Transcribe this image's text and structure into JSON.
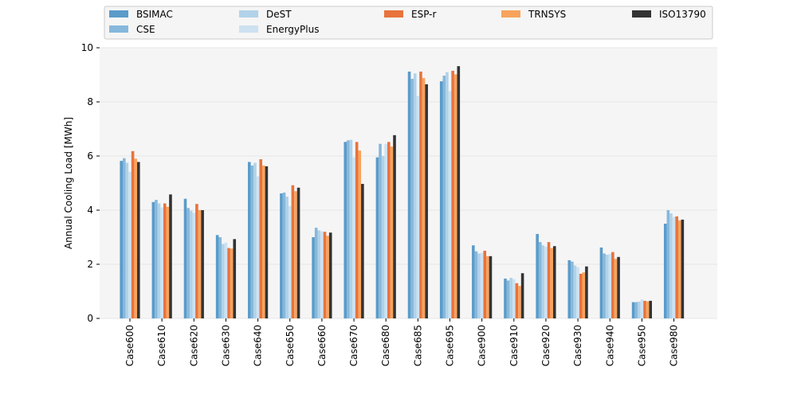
{
  "colors": {
    "BSIMAC": "#5b9bc9",
    "CSE": "#86b8dc",
    "DeST": "#b1d2e8",
    "EnergyPlus": "#cde1f1",
    "ESP-r": "#e8733d",
    "TRNSYS": "#f7a35c",
    "ISO13790": "#333333",
    "plot_bg": "#f5f5f5",
    "grid": "#e6e6e6"
  },
  "chart_data": {
    "type": "bar",
    "title": "",
    "xlabel": "",
    "ylabel": "Annual Cooling Load [MWh]",
    "ylim": [
      0,
      10
    ],
    "yticks": [
      0,
      2,
      4,
      6,
      8,
      10
    ],
    "grid": "horizontal",
    "legend_position": "top",
    "categories": [
      "Case600",
      "Case610",
      "Case620",
      "Case630",
      "Case640",
      "Case650",
      "Case660",
      "Case670",
      "Case680",
      "Case685",
      "Case695",
      "Case900",
      "Case910",
      "Case920",
      "Case930",
      "Case940",
      "Case950",
      "Case980"
    ],
    "series": [
      {
        "name": "BSIMAC",
        "values": [
          5.82,
          4.3,
          4.42,
          3.08,
          5.78,
          4.62,
          3.0,
          6.52,
          5.95,
          9.12,
          8.76,
          2.7,
          1.47,
          3.12,
          2.15,
          2.62,
          0.6,
          3.5
        ]
      },
      {
        "name": "CSE",
        "values": [
          5.92,
          4.38,
          4.08,
          3.0,
          5.65,
          4.65,
          3.35,
          6.58,
          6.45,
          8.85,
          8.97,
          2.48,
          1.4,
          2.82,
          2.1,
          2.4,
          0.6,
          4.0
        ]
      },
      {
        "name": "DeST",
        "values": [
          5.75,
          4.25,
          3.98,
          2.75,
          5.75,
          4.5,
          3.25,
          6.6,
          6.0,
          9.05,
          9.1,
          2.4,
          1.5,
          2.7,
          1.95,
          2.35,
          0.62,
          3.88
        ]
      },
      {
        "name": "EnergyPlus",
        "values": [
          5.42,
          4.1,
          3.9,
          2.8,
          5.25,
          4.15,
          3.22,
          5.95,
          6.45,
          8.22,
          8.4,
          2.42,
          1.45,
          2.65,
          1.9,
          2.38,
          0.7,
          3.75
        ]
      },
      {
        "name": "ESP-r",
        "values": [
          6.18,
          4.25,
          4.23,
          2.6,
          5.88,
          4.92,
          3.2,
          6.52,
          6.52,
          9.12,
          9.15,
          2.5,
          1.3,
          2.82,
          1.65,
          2.45,
          0.65,
          3.77
        ]
      },
      {
        "name": "TRNSYS",
        "values": [
          5.9,
          4.12,
          4.0,
          2.58,
          5.65,
          4.7,
          3.05,
          6.2,
          6.35,
          8.88,
          9.02,
          2.3,
          1.2,
          2.6,
          1.7,
          2.2,
          0.63,
          3.62
        ]
      },
      {
        "name": "ISO13790",
        "values": [
          5.78,
          4.58,
          4.0,
          2.93,
          5.62,
          4.83,
          3.17,
          4.97,
          6.77,
          8.65,
          9.32,
          2.3,
          1.67,
          2.67,
          1.92,
          2.27,
          0.65,
          3.65
        ]
      }
    ]
  }
}
